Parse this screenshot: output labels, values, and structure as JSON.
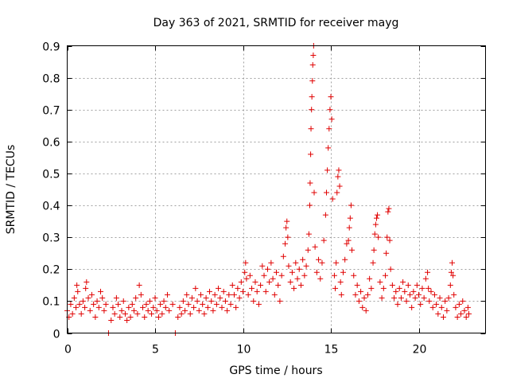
{
  "chart_data": {
    "type": "scatter",
    "title": "Day 363 of 2021, SRMTID for receiver mayg",
    "xlabel": "GPS time / hours",
    "ylabel": "SRMTID / TECUs",
    "xlim": [
      0,
      23.8
    ],
    "ylim": [
      0,
      0.9
    ],
    "x_ticks": [
      0,
      5,
      10,
      15,
      20
    ],
    "y_ticks": [
      0,
      0.1,
      0.2,
      0.3,
      0.4,
      0.5,
      0.6,
      0.7,
      0.8,
      0.9
    ],
    "x_tick_labels": [
      "0",
      "5",
      "10",
      "15",
      "20"
    ],
    "y_tick_labels": [
      "0",
      "0.1",
      "0.2",
      "0.3",
      "0.4",
      "0.5",
      "0.6",
      "0.7",
      "0.8",
      "0.9"
    ],
    "grid": true,
    "marker": "plus",
    "color": "#e00000",
    "series": [
      {
        "name": "SRMTID",
        "points": [
          [
            0.0,
            0.07
          ],
          [
            0.1,
            0.05
          ],
          [
            0.2,
            0.09
          ],
          [
            0.3,
            0.06
          ],
          [
            0.4,
            0.11
          ],
          [
            0.5,
            0.08
          ],
          [
            0.55,
            0.15
          ],
          [
            0.6,
            0.13
          ],
          [
            0.7,
            0.09
          ],
          [
            0.8,
            0.06
          ],
          [
            0.9,
            0.1
          ],
          [
            1.0,
            0.08
          ],
          [
            1.05,
            0.14
          ],
          [
            1.1,
            0.16
          ],
          [
            1.2,
            0.11
          ],
          [
            1.3,
            0.07
          ],
          [
            1.4,
            0.12
          ],
          [
            1.5,
            0.09
          ],
          [
            1.6,
            0.05
          ],
          [
            1.7,
            0.1
          ],
          [
            1.8,
            0.08
          ],
          [
            1.9,
            0.13
          ],
          [
            2.0,
            0.11
          ],
          [
            2.1,
            0.07
          ],
          [
            2.2,
            0.09
          ],
          [
            2.35,
            0.0
          ],
          [
            2.5,
            0.04
          ],
          [
            2.6,
            0.08
          ],
          [
            2.7,
            0.06
          ],
          [
            2.8,
            0.11
          ],
          [
            2.9,
            0.09
          ],
          [
            3.0,
            0.05
          ],
          [
            3.1,
            0.07
          ],
          [
            3.2,
            0.1
          ],
          [
            3.3,
            0.06
          ],
          [
            3.4,
            0.04
          ],
          [
            3.5,
            0.08
          ],
          [
            3.6,
            0.05
          ],
          [
            3.7,
            0.09
          ],
          [
            3.8,
            0.07
          ],
          [
            3.9,
            0.11
          ],
          [
            4.0,
            0.06
          ],
          [
            4.1,
            0.15
          ],
          [
            4.2,
            0.12
          ],
          [
            4.3,
            0.08
          ],
          [
            4.4,
            0.05
          ],
          [
            4.5,
            0.09
          ],
          [
            4.6,
            0.07
          ],
          [
            4.7,
            0.1
          ],
          [
            4.8,
            0.06
          ],
          [
            4.9,
            0.08
          ],
          [
            5.0,
            0.11
          ],
          [
            5.1,
            0.07
          ],
          [
            5.2,
            0.05
          ],
          [
            5.3,
            0.09
          ],
          [
            5.4,
            0.06
          ],
          [
            5.5,
            0.1
          ],
          [
            5.6,
            0.08
          ],
          [
            5.7,
            0.12
          ],
          [
            5.8,
            0.07
          ],
          [
            6.0,
            0.09
          ],
          [
            6.15,
            0.0
          ],
          [
            6.3,
            0.05
          ],
          [
            6.4,
            0.08
          ],
          [
            6.5,
            0.06
          ],
          [
            6.6,
            0.1
          ],
          [
            6.7,
            0.07
          ],
          [
            6.8,
            0.12
          ],
          [
            6.9,
            0.09
          ],
          [
            7.0,
            0.06
          ],
          [
            7.1,
            0.11
          ],
          [
            7.2,
            0.08
          ],
          [
            7.3,
            0.14
          ],
          [
            7.4,
            0.1
          ],
          [
            7.5,
            0.07
          ],
          [
            7.6,
            0.12
          ],
          [
            7.7,
            0.09
          ],
          [
            7.8,
            0.06
          ],
          [
            7.9,
            0.11
          ],
          [
            8.0,
            0.08
          ],
          [
            8.1,
            0.13
          ],
          [
            8.2,
            0.1
          ],
          [
            8.3,
            0.07
          ],
          [
            8.4,
            0.12
          ],
          [
            8.5,
            0.09
          ],
          [
            8.6,
            0.14
          ],
          [
            8.7,
            0.11
          ],
          [
            8.8,
            0.08
          ],
          [
            8.9,
            0.13
          ],
          [
            9.0,
            0.1
          ],
          [
            9.1,
            0.07
          ],
          [
            9.2,
            0.12
          ],
          [
            9.3,
            0.09
          ],
          [
            9.4,
            0.15
          ],
          [
            9.5,
            0.12
          ],
          [
            9.6,
            0.08
          ],
          [
            9.7,
            0.14
          ],
          [
            9.8,
            0.11
          ],
          [
            9.9,
            0.16
          ],
          [
            10.0,
            0.13
          ],
          [
            10.1,
            0.19
          ],
          [
            10.15,
            0.22
          ],
          [
            10.2,
            0.17
          ],
          [
            10.3,
            0.12
          ],
          [
            10.4,
            0.18
          ],
          [
            10.5,
            0.14
          ],
          [
            10.6,
            0.1
          ],
          [
            10.7,
            0.16
          ],
          [
            10.8,
            0.13
          ],
          [
            10.9,
            0.09
          ],
          [
            11.0,
            0.15
          ],
          [
            11.1,
            0.21
          ],
          [
            11.2,
            0.18
          ],
          [
            11.3,
            0.13
          ],
          [
            11.4,
            0.2
          ],
          [
            11.5,
            0.16
          ],
          [
            11.6,
            0.22
          ],
          [
            11.7,
            0.17
          ],
          [
            11.8,
            0.12
          ],
          [
            11.9,
            0.19
          ],
          [
            12.0,
            0.15
          ],
          [
            12.1,
            0.1
          ],
          [
            12.2,
            0.18
          ],
          [
            12.3,
            0.24
          ],
          [
            12.4,
            0.28
          ],
          [
            12.45,
            0.33
          ],
          [
            12.5,
            0.35
          ],
          [
            12.55,
            0.3
          ],
          [
            12.6,
            0.21
          ],
          [
            12.7,
            0.16
          ],
          [
            12.8,
            0.19
          ],
          [
            12.9,
            0.14
          ],
          [
            13.0,
            0.22
          ],
          [
            13.1,
            0.17
          ],
          [
            13.2,
            0.2
          ],
          [
            13.3,
            0.15
          ],
          [
            13.4,
            0.23
          ],
          [
            13.5,
            0.18
          ],
          [
            13.6,
            0.21
          ],
          [
            13.7,
            0.26
          ],
          [
            13.75,
            0.31
          ],
          [
            13.8,
            0.4
          ],
          [
            13.82,
            0.47
          ],
          [
            13.85,
            0.56
          ],
          [
            13.87,
            0.64
          ],
          [
            13.9,
            0.7
          ],
          [
            13.92,
            0.74
          ],
          [
            13.95,
            0.79
          ],
          [
            13.97,
            0.84
          ],
          [
            14.0,
            0.87
          ],
          [
            14.02,
            0.9
          ],
          [
            14.05,
            0.44
          ],
          [
            14.1,
            0.27
          ],
          [
            14.2,
            0.19
          ],
          [
            14.3,
            0.23
          ],
          [
            14.4,
            0.17
          ],
          [
            14.5,
            0.22
          ],
          [
            14.6,
            0.29
          ],
          [
            14.7,
            0.37
          ],
          [
            14.75,
            0.44
          ],
          [
            14.8,
            0.51
          ],
          [
            14.85,
            0.58
          ],
          [
            14.9,
            0.64
          ],
          [
            14.95,
            0.7
          ],
          [
            15.0,
            0.74
          ],
          [
            15.05,
            0.67
          ],
          [
            15.1,
            0.42
          ],
          [
            15.2,
            0.18
          ],
          [
            15.25,
            0.14
          ],
          [
            15.3,
            0.22
          ],
          [
            15.35,
            0.44
          ],
          [
            15.4,
            0.49
          ],
          [
            15.45,
            0.51
          ],
          [
            15.5,
            0.46
          ],
          [
            15.55,
            0.16
          ],
          [
            15.6,
            0.12
          ],
          [
            15.7,
            0.19
          ],
          [
            15.8,
            0.23
          ],
          [
            15.9,
            0.28
          ],
          [
            16.0,
            0.29
          ],
          [
            16.05,
            0.33
          ],
          [
            16.1,
            0.36
          ],
          [
            16.15,
            0.4
          ],
          [
            16.2,
            0.26
          ],
          [
            16.3,
            0.18
          ],
          [
            16.4,
            0.12
          ],
          [
            16.5,
            0.15
          ],
          [
            16.6,
            0.1
          ],
          [
            16.7,
            0.13
          ],
          [
            16.8,
            0.08
          ],
          [
            16.9,
            0.11
          ],
          [
            17.0,
            0.07
          ],
          [
            17.1,
            0.12
          ],
          [
            17.2,
            0.17
          ],
          [
            17.3,
            0.14
          ],
          [
            17.4,
            0.22
          ],
          [
            17.45,
            0.26
          ],
          [
            17.5,
            0.31
          ],
          [
            17.55,
            0.34
          ],
          [
            17.6,
            0.36
          ],
          [
            17.65,
            0.37
          ],
          [
            17.7,
            0.3
          ],
          [
            17.8,
            0.16
          ],
          [
            17.9,
            0.11
          ],
          [
            18.0,
            0.14
          ],
          [
            18.1,
            0.18
          ],
          [
            18.15,
            0.25
          ],
          [
            18.2,
            0.3
          ],
          [
            18.25,
            0.38
          ],
          [
            18.3,
            0.39
          ],
          [
            18.35,
            0.29
          ],
          [
            18.4,
            0.2
          ],
          [
            18.5,
            0.15
          ],
          [
            18.6,
            0.11
          ],
          [
            18.7,
            0.13
          ],
          [
            18.8,
            0.09
          ],
          [
            18.9,
            0.14
          ],
          [
            19.0,
            0.11
          ],
          [
            19.1,
            0.16
          ],
          [
            19.2,
            0.13
          ],
          [
            19.3,
            0.1
          ],
          [
            19.4,
            0.15
          ],
          [
            19.5,
            0.12
          ],
          [
            19.6,
            0.08
          ],
          [
            19.7,
            0.13
          ],
          [
            19.8,
            0.11
          ],
          [
            19.9,
            0.15
          ],
          [
            20.0,
            0.12
          ],
          [
            20.1,
            0.09
          ],
          [
            20.2,
            0.14
          ],
          [
            20.3,
            0.11
          ],
          [
            20.4,
            0.17
          ],
          [
            20.5,
            0.19
          ],
          [
            20.55,
            0.14
          ],
          [
            20.6,
            0.1
          ],
          [
            20.7,
            0.13
          ],
          [
            20.8,
            0.08
          ],
          [
            20.9,
            0.12
          ],
          [
            21.0,
            0.09
          ],
          [
            21.1,
            0.06
          ],
          [
            21.2,
            0.11
          ],
          [
            21.3,
            0.08
          ],
          [
            21.4,
            0.05
          ],
          [
            21.5,
            0.1
          ],
          [
            21.6,
            0.07
          ],
          [
            21.7,
            0.11
          ],
          [
            21.8,
            0.15
          ],
          [
            21.85,
            0.19
          ],
          [
            21.9,
            0.22
          ],
          [
            21.95,
            0.18
          ],
          [
            22.0,
            0.12
          ],
          [
            22.1,
            0.08
          ],
          [
            22.2,
            0.05
          ],
          [
            22.3,
            0.09
          ],
          [
            22.4,
            0.06
          ],
          [
            22.5,
            0.1
          ],
          [
            22.6,
            0.07
          ],
          [
            22.7,
            0.05
          ],
          [
            22.8,
            0.08
          ],
          [
            22.85,
            0.06
          ]
        ]
      }
    ]
  }
}
